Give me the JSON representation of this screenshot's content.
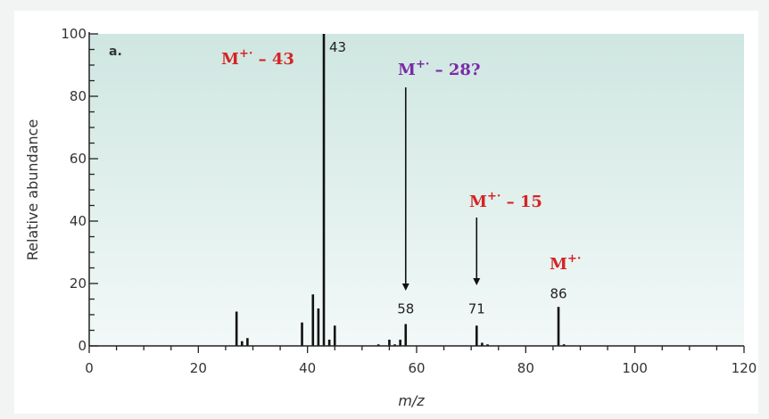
{
  "chart_data": {
    "type": "bar",
    "panel_label": "a.",
    "xlabel": "m/z",
    "ylabel": "Relative abundance",
    "xlim": [
      0,
      120
    ],
    "ylim": [
      0,
      100
    ],
    "x_ticks": [
      "0",
      "20",
      "40",
      "60",
      "80",
      "100",
      "120"
    ],
    "y_ticks": [
      "0",
      "20",
      "40",
      "60",
      "80",
      "100"
    ],
    "background_gradient": [
      "#cfe6e1",
      "#f2f9f8"
    ],
    "bar_color": "#111111",
    "peaks": [
      {
        "x": 27,
        "y": 11
      },
      {
        "x": 28,
        "y": 1.5
      },
      {
        "x": 29,
        "y": 2.5
      },
      {
        "x": 39,
        "y": 7.5
      },
      {
        "x": 41,
        "y": 16.5
      },
      {
        "x": 42,
        "y": 12
      },
      {
        "x": 43,
        "y": 100
      },
      {
        "x": 44,
        "y": 2
      },
      {
        "x": 45,
        "y": 6.5
      },
      {
        "x": 53,
        "y": 0.5
      },
      {
        "x": 55,
        "y": 2
      },
      {
        "x": 56,
        "y": 0.5
      },
      {
        "x": 57,
        "y": 2
      },
      {
        "x": 58,
        "y": 7
      },
      {
        "x": 71,
        "y": 6.5
      },
      {
        "x": 72,
        "y": 1
      },
      {
        "x": 73,
        "y": 0.5
      },
      {
        "x": 86,
        "y": 12.5
      },
      {
        "x": 87,
        "y": 0.5
      }
    ],
    "peak_labels": [
      {
        "x": 43,
        "y": 100,
        "text": "43"
      },
      {
        "x": 58,
        "y": 7,
        "text": "58"
      },
      {
        "x": 71,
        "y": 6.5,
        "text": "71"
      },
      {
        "x": 86,
        "y": 12.5,
        "text": "86"
      }
    ],
    "annotations": [
      {
        "base": "M",
        "sup": "+·",
        "suffix": " – 43",
        "color": "#d42424"
      },
      {
        "base": "M",
        "sup": "+·",
        "suffix": " – 28?",
        "color": "#7a2aa8"
      },
      {
        "base": "M",
        "sup": "+·",
        "suffix": " – 15",
        "color": "#d42424"
      },
      {
        "base": "M",
        "sup": "+·",
        "suffix": "",
        "color": "#d42424"
      }
    ]
  }
}
